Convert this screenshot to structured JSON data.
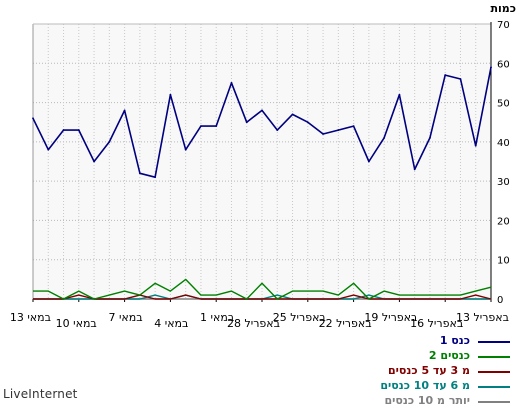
{
  "chart_data": {
    "type": "line",
    "ylabel": "כמות",
    "ylim": [
      0,
      70
    ],
    "yticks": [
      0,
      10,
      20,
      30,
      40,
      50,
      60,
      70
    ],
    "grid": true,
    "x_tick_labels": [
      "13 באפריל",
      "16 באפריל",
      "19 באפריל",
      "22 באפריל",
      "25 באפריל",
      "28 באפריל",
      "1 במאי",
      "4 במאי",
      "7 במאי",
      "10 במאי",
      "13 במאי"
    ],
    "x_order": "right-to-left (newest on left)",
    "series": [
      {
        "name": "כנס 1",
        "color": "#000080",
        "values": [
          46,
          38,
          43,
          43,
          35,
          40,
          48,
          32,
          31,
          52,
          38,
          44,
          44,
          55,
          45,
          48,
          43,
          47,
          45,
          42,
          43,
          44,
          35,
          41,
          52,
          33,
          41,
          57,
          56,
          39,
          59
        ]
      },
      {
        "name": "2 כנסים",
        "color": "#008000",
        "values": [
          2,
          2,
          0,
          2,
          0,
          1,
          2,
          1,
          4,
          2,
          5,
          1,
          1,
          2,
          0,
          4,
          0,
          2,
          2,
          2,
          1,
          4,
          0,
          2,
          1,
          1,
          1,
          1,
          1,
          2,
          3
        ]
      },
      {
        "name": "מ 3 עד 5 כנסים",
        "color": "#800000",
        "values": [
          0,
          0,
          0,
          1,
          0,
          0,
          0,
          1,
          0,
          0,
          1,
          0,
          0,
          0,
          0,
          0,
          0,
          0,
          0,
          0,
          0,
          1,
          0,
          0,
          0,
          0,
          0,
          0,
          0,
          1,
          0
        ]
      },
      {
        "name": "מ 6 עד 10 כנסים",
        "color": "#008080",
        "values": [
          0,
          0,
          0,
          0,
          0,
          0,
          0,
          0,
          1,
          0,
          1,
          0,
          0,
          0,
          0,
          0,
          1,
          0,
          0,
          0,
          0,
          0,
          1,
          0,
          0,
          0,
          0,
          0,
          0,
          0,
          0
        ]
      },
      {
        "name": "יותר מ 10 כנסים",
        "color": "#808080",
        "values": [
          0,
          0,
          0,
          0,
          0,
          0,
          0,
          0,
          0,
          0,
          0,
          0,
          0,
          0,
          0,
          0,
          0,
          0,
          0,
          0,
          0,
          0,
          0,
          0,
          0,
          0,
          0,
          0,
          0,
          0,
          0
        ]
      }
    ]
  },
  "footer": "LiveInternet"
}
